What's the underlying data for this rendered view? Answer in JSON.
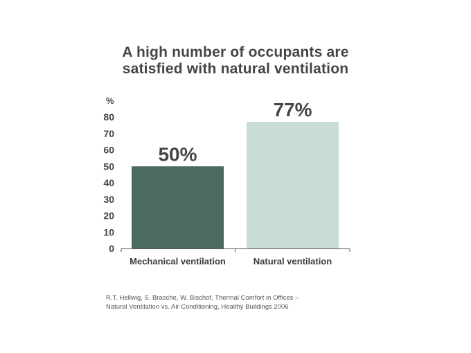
{
  "chart_data": {
    "type": "bar",
    "title_lines": [
      "A high number of occupants are",
      "satisfied with natural ventilation"
    ],
    "ylabel": "%",
    "xlabel": "",
    "categories": [
      "Mechanical ventilation",
      "Natural ventilation"
    ],
    "values": [
      50,
      77
    ],
    "data_labels": [
      "50%",
      "77%"
    ],
    "bar_colors": [
      "#4b6b60",
      "#c8ddd4"
    ],
    "ylim": [
      0,
      80
    ],
    "yticks": [
      "0",
      "10",
      "20",
      "30",
      "40",
      "50",
      "60",
      "70",
      "80"
    ],
    "ytick_values": [
      0,
      10,
      20,
      30,
      40,
      50,
      60,
      70,
      80
    ],
    "grid": false,
    "legend": "none"
  },
  "source": {
    "lines": [
      "R.T. Hellwig, S. Brasche, W. Bischof, Thermal Comfort in Offices –",
      "Natural Ventilation vs. Air Conditioning, Healthy Buildings 2006"
    ]
  }
}
